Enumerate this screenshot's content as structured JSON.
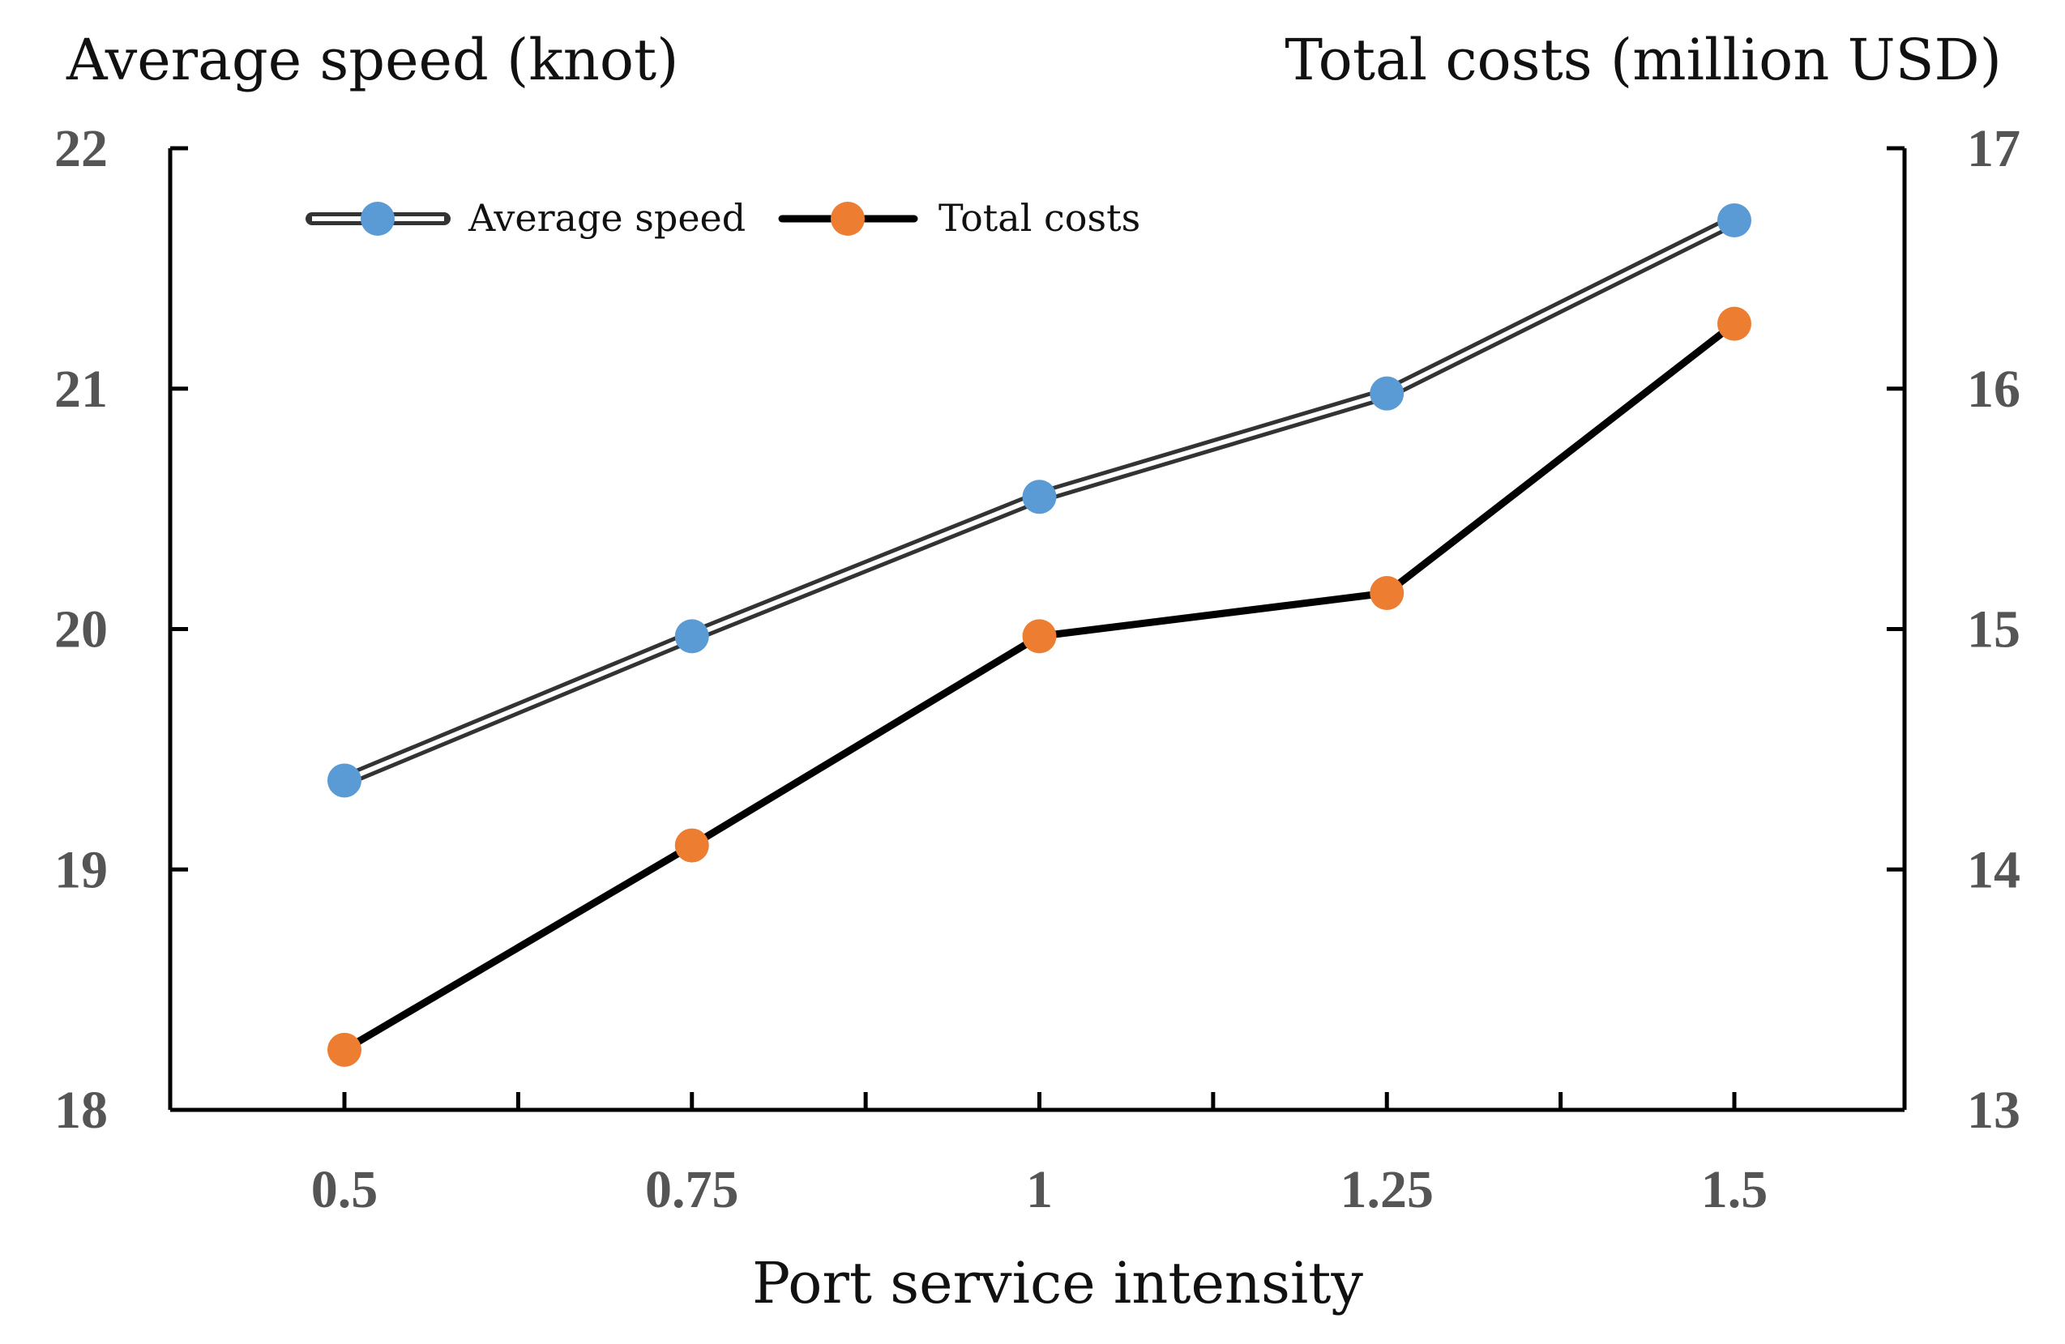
{
  "chart_data": {
    "type": "line",
    "xlabel": "Port service intensity",
    "ylabel_left": "Average speed (knot)",
    "ylabel_right": "Total costs (million USD)",
    "x": [
      0.5,
      0.75,
      1,
      1.25,
      1.5
    ],
    "x_tick_labels": [
      "0.5",
      "0.75",
      "1",
      "1.25",
      "1.5"
    ],
    "ylim_left": [
      18,
      22
    ],
    "yticks_left": [
      "18",
      "19",
      "20",
      "21",
      "22"
    ],
    "ylim_right": [
      13,
      17
    ],
    "yticks_right": [
      "13",
      "14",
      "15",
      "16",
      "17"
    ],
    "legend_position": "top-left",
    "series": [
      {
        "name": "Average speed",
        "axis": "left",
        "values": [
          19.37,
          19.97,
          20.55,
          20.98,
          21.7
        ],
        "marker_color": "#5B9BD5",
        "line_style": "double",
        "line_color": "#333333"
      },
      {
        "name": "Total costs",
        "axis": "right",
        "values": [
          13.25,
          14.1,
          14.97,
          15.15,
          16.27
        ],
        "marker_color": "#ED7D31",
        "line_style": "solid",
        "line_color": "#000000"
      }
    ]
  }
}
